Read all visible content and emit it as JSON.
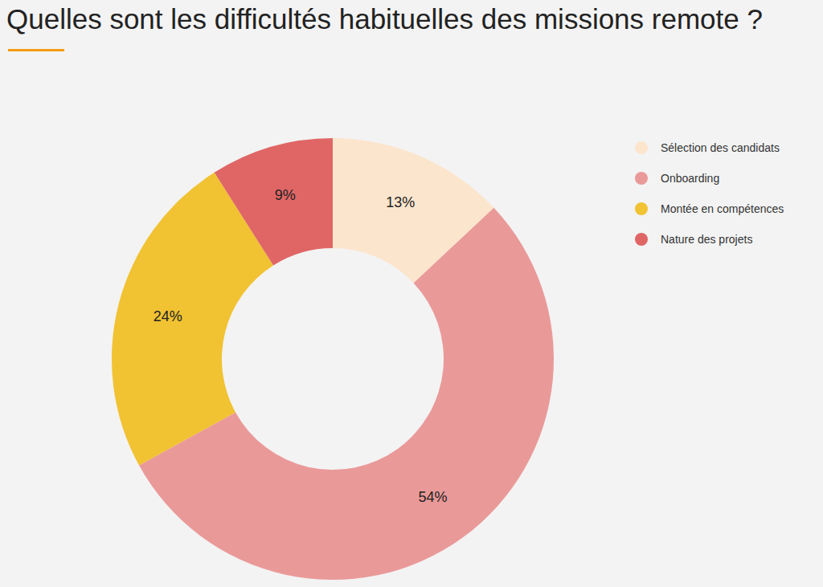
{
  "chart_data": {
    "type": "pie",
    "title": "Quelles sont les difficultés habituelles des missions remote ?",
    "categories": [
      "Sélection des candidats",
      "Onboarding",
      "Montée en compétences",
      "Nature des projets"
    ],
    "values": [
      13,
      54,
      24,
      9
    ],
    "value_labels": [
      "13%",
      "54%",
      "24%",
      "9%"
    ],
    "colors": [
      "#fce5cd",
      "#ea9999",
      "#f1c232",
      "#e06666"
    ],
    "data_labels": true,
    "legend": "right"
  }
}
